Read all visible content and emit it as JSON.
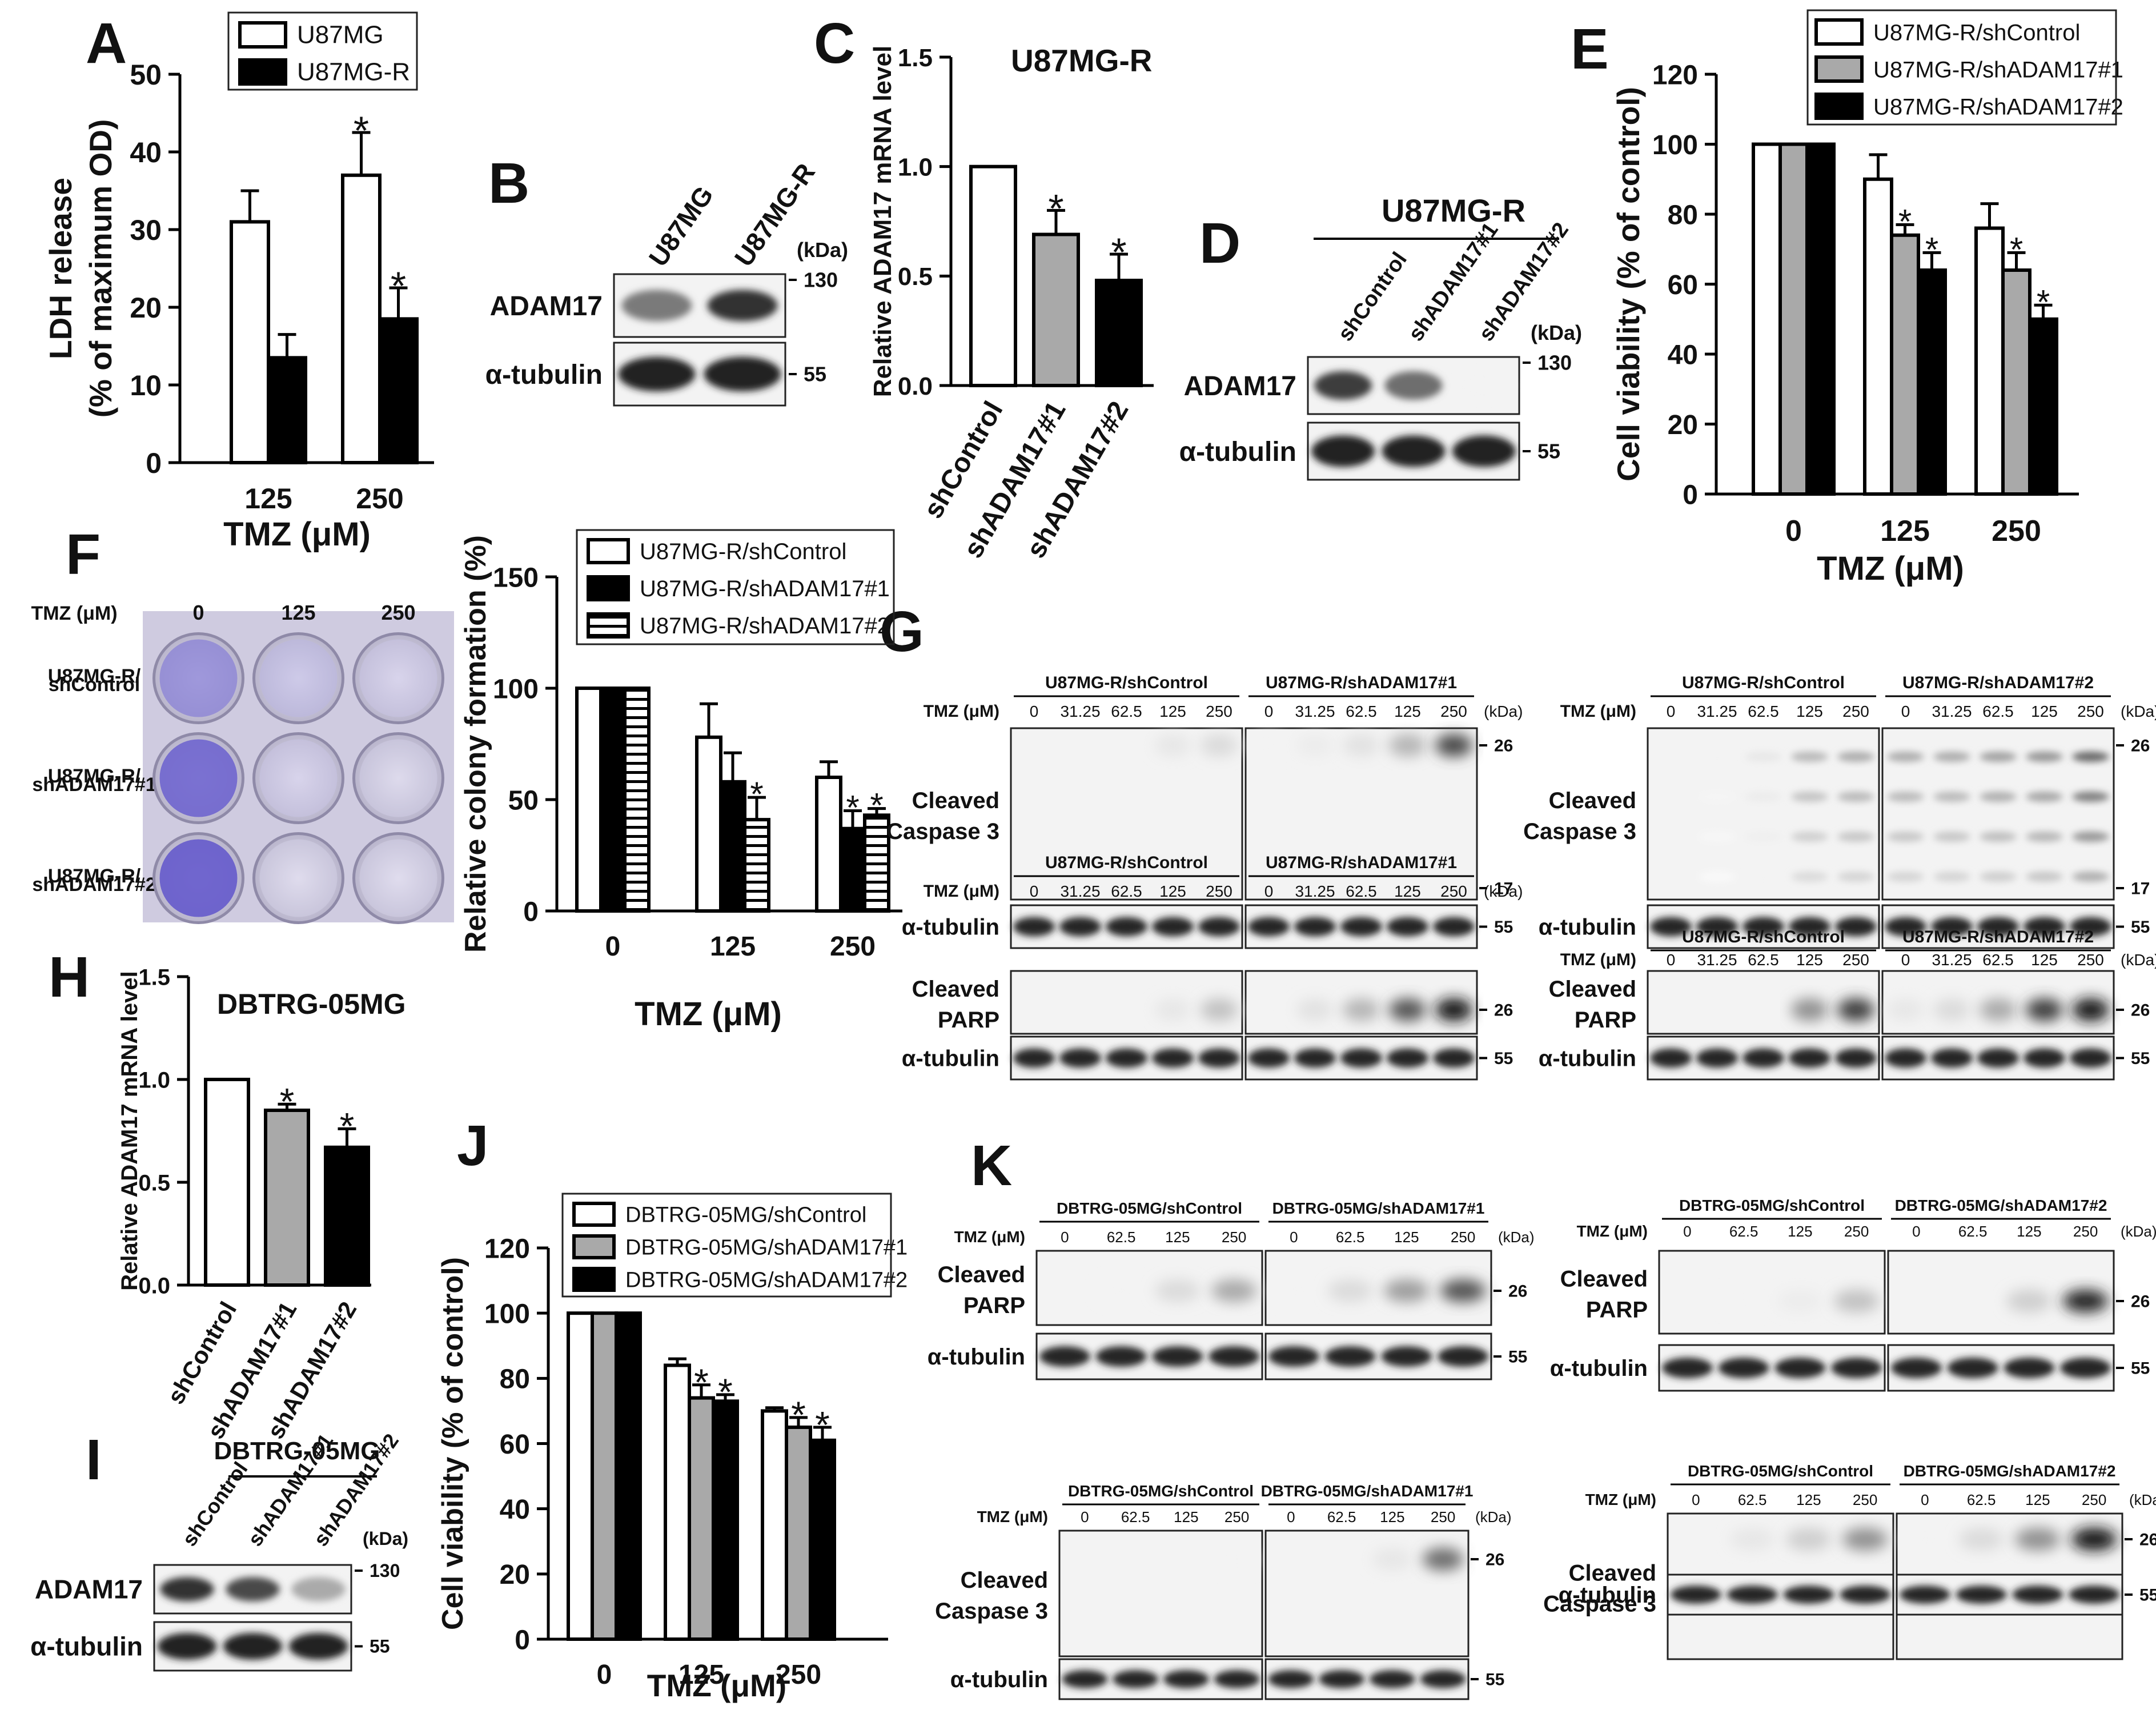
{
  "panels": {
    "A": "A",
    "B": "B",
    "C": "C",
    "D": "D",
    "E": "E",
    "F": "F",
    "G": "G",
    "H": "H",
    "I": "I",
    "J": "J",
    "K": "K"
  },
  "common": {
    "tmz_um": "TMZ (μM)",
    "kda": "(kDa)",
    "alpha_tubulin": "α-tubulin",
    "adam17": "ADAM17",
    "cleaved": "Cleaved",
    "caspase3": "Caspase 3",
    "parp": "PARP",
    "star": "*"
  },
  "chart_data": [
    {
      "id": "A",
      "type": "bar",
      "ylabel": [
        "LDH release",
        "(% of maximum OD)"
      ],
      "xlabel": "TMZ (μM)",
      "categories": [
        "125",
        "250"
      ],
      "series": [
        {
          "name": "U87MG",
          "values": [
            31,
            37
          ],
          "errors": [
            4,
            5.5
          ],
          "color": "#ffffff"
        },
        {
          "name": "U87MG-R",
          "values": [
            13.5,
            18.5
          ],
          "errors": [
            3,
            4
          ],
          "color": "#000000"
        }
      ],
      "ylim": [
        0,
        50
      ],
      "yticks": [
        "0",
        "10",
        "20",
        "30",
        "40",
        "50"
      ],
      "significant": [
        [
          false,
          true
        ],
        [
          false,
          true
        ]
      ],
      "legend": "top-left"
    },
    {
      "id": "C",
      "type": "bar",
      "title": "U87MG-R",
      "ylabel": [
        "Relative ADAM17 mRNA level"
      ],
      "categories": [
        "shControl",
        "shADAM17#1",
        "shADAM17#2"
      ],
      "values": [
        1.0,
        0.69,
        0.48
      ],
      "errors": [
        0,
        0.11,
        0.12
      ],
      "colors": [
        "#ffffff",
        "#a9a9a9",
        "#000000"
      ],
      "ylim": [
        0,
        1.5
      ],
      "yticks": [
        "0.0",
        "0.5",
        "1.0",
        "1.5"
      ],
      "significant": [
        false,
        true,
        true
      ]
    },
    {
      "id": "E",
      "type": "bar",
      "ylabel": [
        "Cell viability (% of control)"
      ],
      "xlabel": "TMZ (μM)",
      "categories": [
        "0",
        "125",
        "250"
      ],
      "series": [
        {
          "name": "U87MG-R/shControl",
          "values": [
            100,
            90,
            76
          ],
          "errors": [
            0,
            7,
            7
          ],
          "color": "#ffffff"
        },
        {
          "name": "U87MG-R/shADAM17#1",
          "values": [
            100,
            74,
            64
          ],
          "errors": [
            0,
            3,
            5
          ],
          "color": "#a9a9a9"
        },
        {
          "name": "U87MG-R/shADAM17#2",
          "values": [
            100,
            64,
            50
          ],
          "errors": [
            0,
            5,
            4
          ],
          "color": "#000000"
        }
      ],
      "ylim": [
        0,
        120
      ],
      "yticks": [
        "0",
        "20",
        "40",
        "60",
        "80",
        "100",
        "120"
      ],
      "significant": [
        [
          false,
          false,
          false
        ],
        [
          false,
          true,
          true
        ],
        [
          false,
          true,
          true
        ]
      ],
      "legend": "top"
    },
    {
      "id": "F",
      "type": "bar",
      "ylabel": [
        "Relative colony formation (%)"
      ],
      "xlabel": "TMZ (μM)",
      "categories": [
        "0",
        "125",
        "250"
      ],
      "series": [
        {
          "name": "U87MG-R/shControl",
          "values": [
            100,
            78,
            60
          ],
          "errors": [
            0,
            15,
            7
          ],
          "color": "#ffffff"
        },
        {
          "name": "U87MG-R/shADAM17#1",
          "values": [
            100,
            58,
            37
          ],
          "errors": [
            0,
            13,
            8
          ],
          "color": "#000000"
        },
        {
          "name": "U87MG-R/shADAM17#2",
          "values": [
            100,
            41,
            43
          ],
          "errors": [
            0,
            10,
            3
          ],
          "color": "striped"
        }
      ],
      "ylim": [
        0,
        150
      ],
      "yticks": [
        "0",
        "50",
        "100",
        "150"
      ],
      "significant": [
        [
          false,
          false,
          false
        ],
        [
          false,
          false,
          true
        ],
        [
          false,
          true,
          true
        ]
      ],
      "legend": "top"
    },
    {
      "id": "H",
      "type": "bar",
      "title": "DBTRG-05MG",
      "ylabel": [
        "Relative ADAM17 mRNA level"
      ],
      "categories": [
        "shControl",
        "shADAM17#1",
        "shADAM17#2"
      ],
      "values": [
        1.0,
        0.85,
        0.67
      ],
      "errors": [
        0,
        0.03,
        0.09
      ],
      "colors": [
        "#ffffff",
        "#a9a9a9",
        "#000000"
      ],
      "ylim": [
        0,
        1.5
      ],
      "yticks": [
        "0.0",
        "0.5",
        "1.0",
        "1.5"
      ],
      "significant": [
        false,
        true,
        true
      ]
    },
    {
      "id": "J",
      "type": "bar",
      "ylabel": [
        "Cell viability (% of control)"
      ],
      "xlabel": "TMZ (μM)",
      "categories": [
        "0",
        "125",
        "250"
      ],
      "series": [
        {
          "name": "DBTRG-05MG/shControl",
          "values": [
            100,
            84,
            70
          ],
          "errors": [
            0,
            2,
            1
          ],
          "color": "#ffffff"
        },
        {
          "name": "DBTRG-05MG/shADAM17#1",
          "values": [
            100,
            74,
            65
          ],
          "errors": [
            0,
            4,
            3
          ],
          "color": "#a9a9a9"
        },
        {
          "name": "DBTRG-05MG/shADAM17#2",
          "values": [
            100,
            73,
            61
          ],
          "errors": [
            0,
            2,
            4
          ],
          "color": "#000000"
        }
      ],
      "ylim": [
        0,
        120
      ],
      "yticks": [
        "0",
        "20",
        "40",
        "60",
        "80",
        "100",
        "120"
      ],
      "significant": [
        [
          false,
          false,
          false
        ],
        [
          false,
          true,
          true
        ],
        [
          false,
          true,
          true
        ]
      ],
      "legend": "top"
    }
  ],
  "blots": {
    "B": {
      "lanes": [
        "U87MG",
        "U87MG-R"
      ],
      "rows": [
        "ADAM17",
        "α-tubulin"
      ],
      "markers": [
        "130",
        "55"
      ],
      "adam17_levels": [
        0.55,
        0.85
      ]
    },
    "D": {
      "header": "U87MG-R",
      "lanes": [
        "shControl",
        "shADAM17#1",
        "shADAM17#2"
      ],
      "rows": [
        "ADAM17",
        "α-tubulin"
      ],
      "markers": [
        "130",
        "55"
      ],
      "adam17_levels": [
        0.8,
        0.6,
        0.05
      ]
    },
    "I": {
      "header": "DBTRG-05MG",
      "lanes": [
        "shControl",
        "shADAM17#1",
        "shADAM17#2"
      ],
      "rows": [
        "ADAM17",
        "α-tubulin"
      ],
      "markers": [
        "130",
        "55"
      ],
      "adam17_levels": [
        0.85,
        0.75,
        0.35
      ]
    },
    "F_plate": {
      "tmz_label": "TMZ (μM)",
      "columns": [
        "0",
        "125",
        "250"
      ],
      "rows": [
        [
          "U87MG-R/",
          "shControl"
        ],
        [
          "U87MG-R/",
          "shADAM17#1"
        ],
        [
          "U87MG-R/",
          "shADAM17#2"
        ]
      ],
      "stain": [
        [
          0.65,
          0.3,
          0.2
        ],
        [
          0.85,
          0.2,
          0.12
        ],
        [
          0.9,
          0.1,
          0.08
        ]
      ]
    },
    "G": {
      "doses": [
        "0",
        "31.25",
        "62.5",
        "125",
        "250"
      ],
      "blocks": [
        {
          "groups": [
            "U87MG-R/shControl",
            "U87MG-R/shADAM17#1"
          ],
          "target": [
            "Cleaved",
            "Caspase 3"
          ],
          "markers": [
            "26",
            "17"
          ],
          "signal": [
            [
              0,
              0,
              0,
              0.1,
              0.15
            ],
            [
              0.05,
              0.08,
              0.12,
              0.3,
              0.75
            ]
          ]
        },
        {
          "groups": [
            "U87MG-R/shControl",
            "U87MG-R/shADAM17#2"
          ],
          "target": [
            "Cleaved",
            "Caspase 3"
          ],
          "markers": [
            "26",
            "17"
          ],
          "signal": [
            [
              0,
              0.05,
              0.1,
              0.3,
              0.35
            ],
            [
              0.35,
              0.35,
              0.4,
              0.45,
              0.65
            ]
          ]
        },
        {
          "groups": [
            "U87MG-R/shControl",
            "U87MG-R/shADAM17#1"
          ],
          "target": [
            "Cleaved",
            "PARP"
          ],
          "markers": [
            "26"
          ],
          "signal": [
            [
              0,
              0,
              0,
              0.1,
              0.25
            ],
            [
              0.05,
              0.12,
              0.3,
              0.7,
              0.95
            ]
          ]
        },
        {
          "groups": [
            "U87MG-R/shControl",
            "U87MG-R/shADAM17#2"
          ],
          "target": [
            "Cleaved",
            "PARP"
          ],
          "markers": [
            "26"
          ],
          "signal": [
            [
              0,
              0,
              0,
              0.45,
              0.8
            ],
            [
              0.1,
              0.15,
              0.35,
              0.8,
              0.95
            ]
          ]
        }
      ]
    },
    "K": {
      "doses": [
        "0",
        "62.5",
        "125",
        "250"
      ],
      "blocks": [
        {
          "groups": [
            "DBTRG-05MG/shControl",
            "DBTRG-05MG/shADAM17#1"
          ],
          "target": [
            "Cleaved",
            "PARP"
          ],
          "markers": [
            "26"
          ],
          "signal": [
            [
              0,
              0.05,
              0.15,
              0.35
            ],
            [
              0.05,
              0.15,
              0.4,
              0.7
            ]
          ]
        },
        {
          "groups": [
            "DBTRG-05MG/shControl",
            "DBTRG-05MG/shADAM17#2"
          ],
          "target": [
            "Cleaved",
            "PARP"
          ],
          "markers": [
            "26"
          ],
          "signal": [
            [
              0,
              0.05,
              0.08,
              0.25
            ],
            [
              0,
              0,
              0.2,
              0.9
            ]
          ]
        },
        {
          "groups": [
            "DBTRG-05MG/shControl",
            "DBTRG-05MG/shADAM17#1"
          ],
          "target": [
            "Cleaved",
            "Caspase 3"
          ],
          "markers": [
            "26"
          ],
          "signal": [
            [
              0,
              0,
              0,
              0.05
            ],
            [
              0,
              0,
              0.1,
              0.6
            ]
          ]
        },
        {
          "groups": [
            "DBTRG-05MG/shControl",
            "DBTRG-05MG/shADAM17#2"
          ],
          "target": [
            "Cleaved",
            "Caspase 3"
          ],
          "markers": [
            "26"
          ],
          "signal": [
            [
              0,
              0.1,
              0.2,
              0.45
            ],
            [
              0.05,
              0.15,
              0.45,
              0.95
            ]
          ]
        }
      ]
    }
  }
}
